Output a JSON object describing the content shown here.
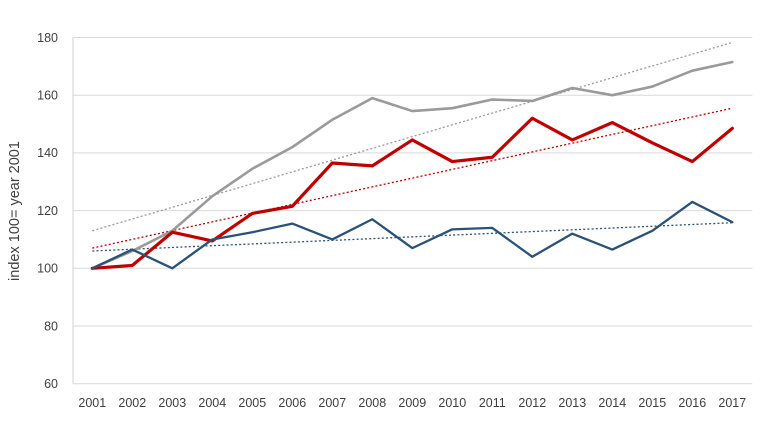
{
  "chart_data": {
    "type": "line",
    "title": "",
    "xlabel": "",
    "ylabel": "index 100= year 2001",
    "categories": [
      "2001",
      "2002",
      "2003",
      "2004",
      "2005",
      "2006",
      "2007",
      "2008",
      "2009",
      "2010",
      "2011",
      "2012",
      "2013",
      "2014",
      "2015",
      "2016",
      "2017"
    ],
    "ylim": [
      60,
      180
    ],
    "yticks": [
      60,
      80,
      100,
      120,
      140,
      160,
      180
    ],
    "grid": "horizontal",
    "legend": "none",
    "series": [
      {
        "name": "gray-series",
        "color": "#9a9a9a",
        "line_style": "solid",
        "line_width": 2.6,
        "values": [
          100,
          106,
          113,
          125,
          134.5,
          142,
          151.5,
          159,
          154.5,
          155.5,
          158.5,
          158,
          162.5,
          160,
          163,
          168.5,
          171.5
        ]
      },
      {
        "name": "red-series",
        "color": "#c00000",
        "line_style": "solid",
        "line_width": 3.2,
        "values": [
          100,
          101,
          112.5,
          109.5,
          119,
          121.5,
          136.5,
          135.5,
          144.5,
          137,
          138.5,
          152,
          144.5,
          150.5,
          143.5,
          137,
          148.5
        ]
      },
      {
        "name": "blue-series",
        "color": "#2a5277",
        "line_style": "solid",
        "line_width": 2.3,
        "values": [
          100,
          106.5,
          100,
          110,
          112.5,
          115.5,
          110,
          117,
          107,
          113.5,
          114,
          104,
          112,
          106.5,
          113,
          123,
          116
        ]
      }
    ],
    "trendlines": [
      {
        "name": "gray-trendline",
        "color": "#9a9a9a",
        "line_style": "dotted",
        "start_value": 113,
        "end_value": 178.3
      },
      {
        "name": "red-trendline",
        "color": "#c00000",
        "line_style": "dotted",
        "start_value": 107,
        "end_value": 155.5
      },
      {
        "name": "blue-trendline",
        "color": "#2a5277",
        "line_style": "dotted",
        "start_value": 106,
        "end_value": 115.8
      }
    ],
    "axis_style": {
      "grid_color": "#d9d9d9",
      "axis_line_color": "#d0d0d0",
      "tick_label_color": "#3f3f3f",
      "axis_title_color": "#3f3f3f"
    }
  }
}
